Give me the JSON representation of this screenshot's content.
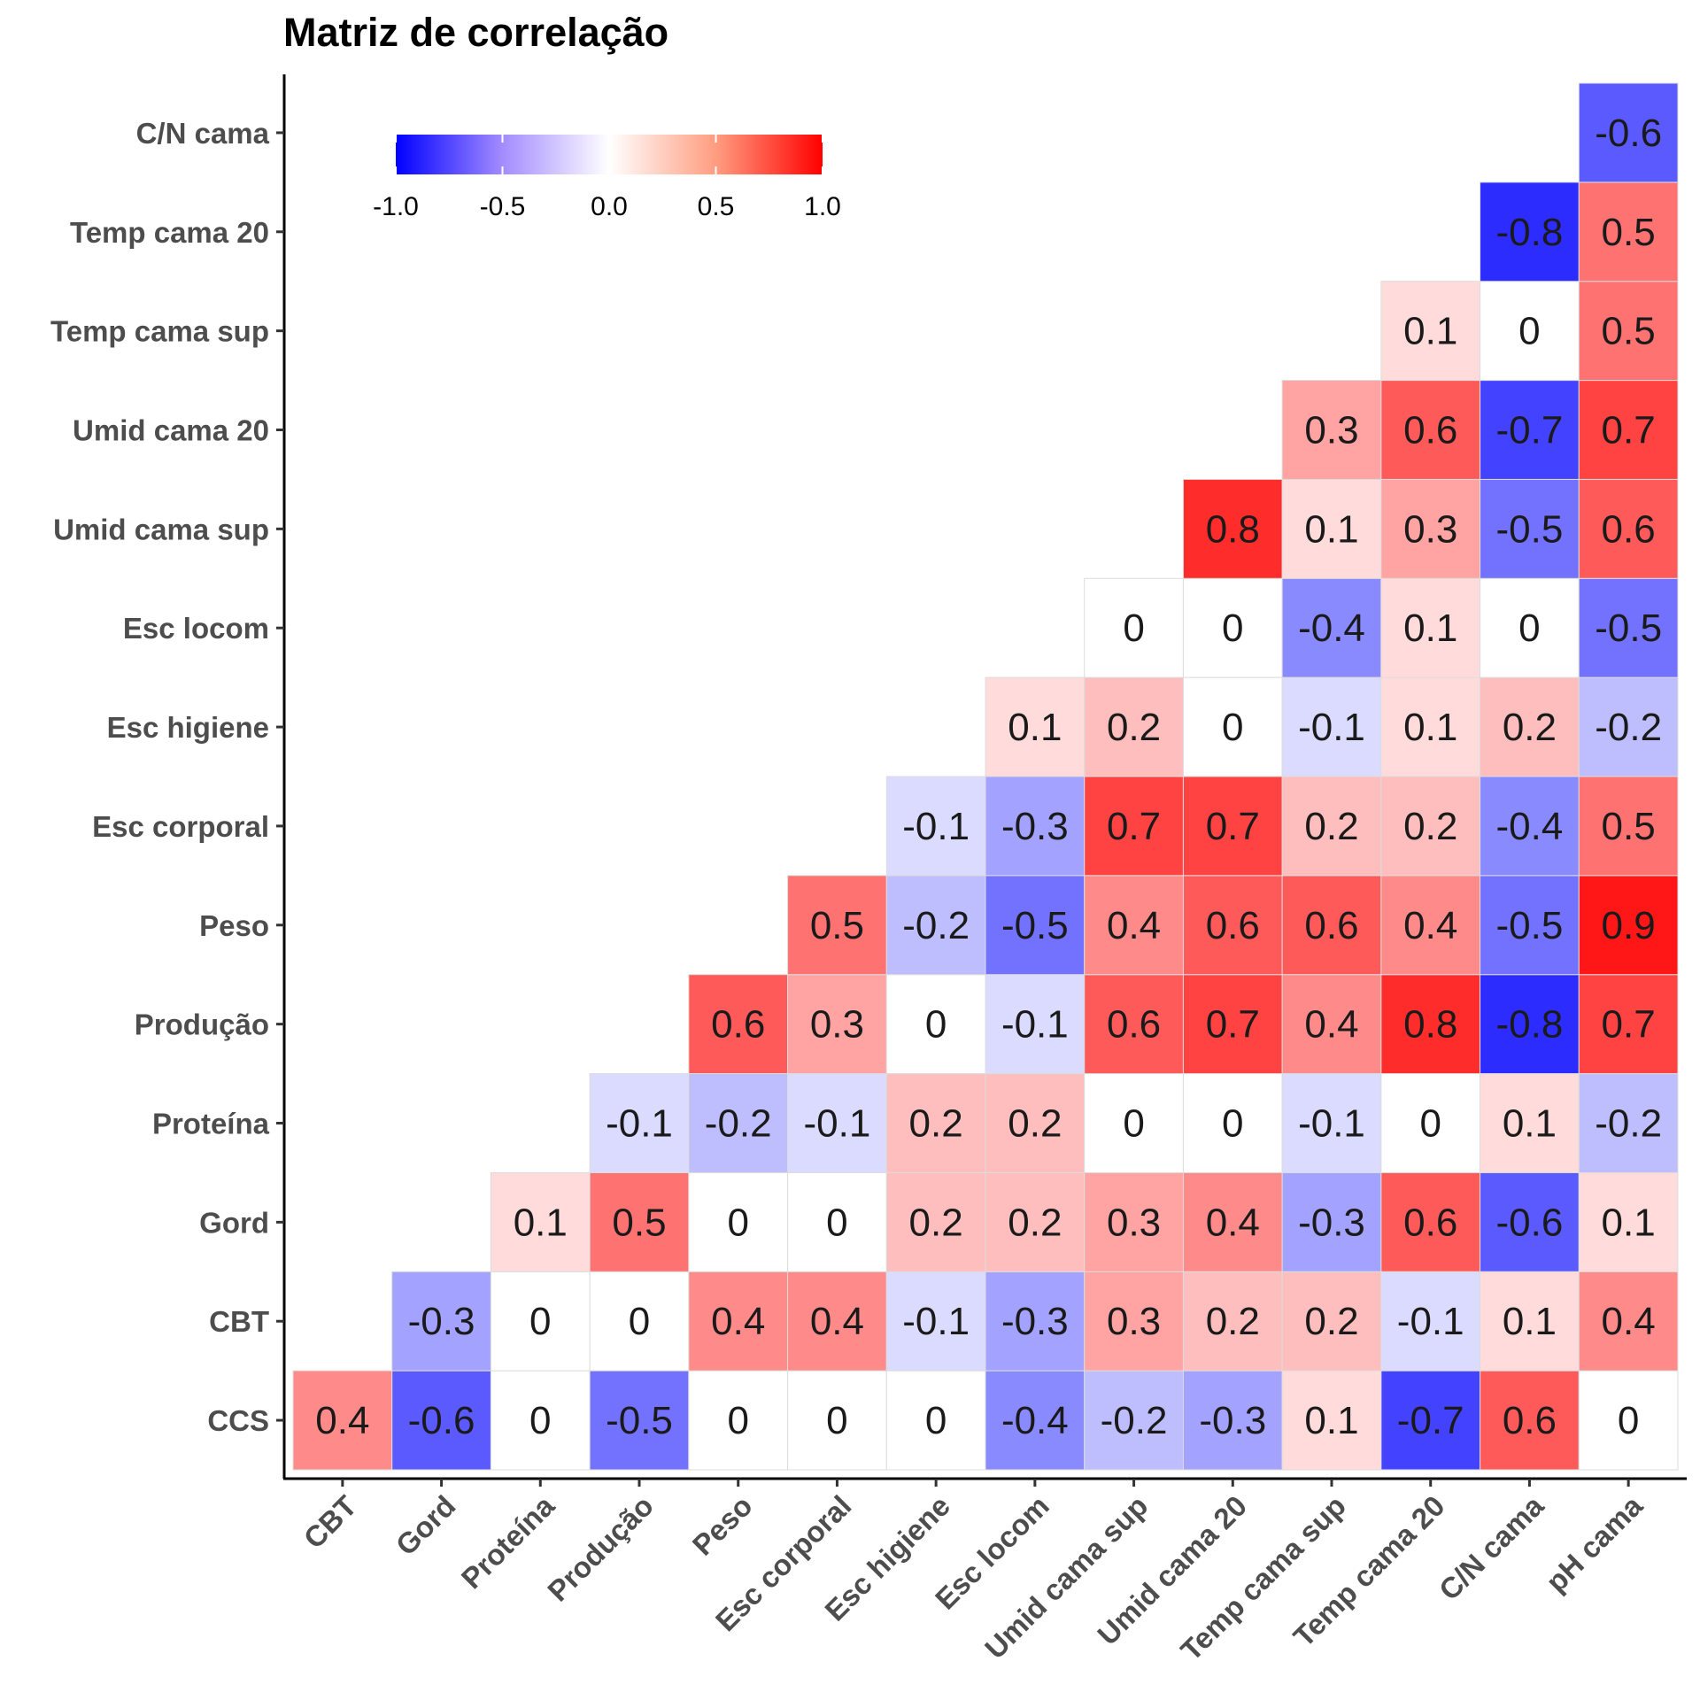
{
  "chart_data": {
    "type": "heatmap",
    "title": "Matriz de correlação",
    "x_categories": [
      "CBT",
      "Gord",
      "Proteína",
      "Produção",
      "Peso",
      "Esc corporal",
      "Esc higiene",
      "Esc locom",
      "Umid cama sup",
      "Umid cama 20",
      "Temp cama sup",
      "Temp cama 20",
      "C/N cama",
      "pH cama"
    ],
    "y_categories": [
      "CCS",
      "CBT",
      "Gord",
      "Proteína",
      "Produção",
      "Peso",
      "Esc corporal",
      "Esc higiene",
      "Esc locom",
      "Umid cama sup",
      "Umid cama 20",
      "Temp cama sup",
      "Temp cama 20",
      "C/N cama"
    ],
    "rows": [
      {
        "y": "CCS",
        "values": [
          "0.4",
          "-0.6",
          "0",
          "-0.5",
          "0",
          "0",
          "0",
          "-0.4",
          "-0.2",
          "-0.3",
          "0.1",
          "-0.7",
          "0.6",
          "0"
        ]
      },
      {
        "y": "CBT",
        "values": [
          null,
          "-0.3",
          "0",
          "0",
          "0.4",
          "0.4",
          "-0.1",
          "-0.3",
          "0.3",
          "0.2",
          "0.2",
          "-0.1",
          "0.1",
          "0.4"
        ]
      },
      {
        "y": "Gord",
        "values": [
          null,
          null,
          "0.1",
          "0.5",
          "0",
          "0",
          "0.2",
          "0.2",
          "0.3",
          "0.4",
          "-0.3",
          "0.6",
          "-0.6",
          "0.1"
        ]
      },
      {
        "y": "Proteína",
        "values": [
          null,
          null,
          null,
          "-0.1",
          "-0.2",
          "-0.1",
          "0.2",
          "0.2",
          "0",
          "0",
          "-0.1",
          "0",
          "0.1",
          "-0.2"
        ]
      },
      {
        "y": "Produção",
        "values": [
          null,
          null,
          null,
          null,
          "0.6",
          "0.3",
          "0",
          "-0.1",
          "0.6",
          "0.7",
          "0.4",
          "0.8",
          "-0.8",
          "0.7"
        ]
      },
      {
        "y": "Peso",
        "values": [
          null,
          null,
          null,
          null,
          null,
          "0.5",
          "-0.2",
          "-0.5",
          "0.4",
          "0.6",
          "0.6",
          "0.4",
          "-0.5",
          "0.9"
        ]
      },
      {
        "y": "Esc corporal",
        "values": [
          null,
          null,
          null,
          null,
          null,
          null,
          "-0.1",
          "-0.3",
          "0.7",
          "0.7",
          "0.2",
          "0.2",
          "-0.4",
          "0.5"
        ]
      },
      {
        "y": "Esc higiene",
        "values": [
          null,
          null,
          null,
          null,
          null,
          null,
          null,
          "0.1",
          "0.2",
          "0",
          "-0.1",
          "0.1",
          "0.2",
          "-0.2"
        ]
      },
      {
        "y": "Esc locom",
        "values": [
          null,
          null,
          null,
          null,
          null,
          null,
          null,
          null,
          "0",
          "0",
          "-0.4",
          "0.1",
          "0",
          "-0.5"
        ]
      },
      {
        "y": "Umid cama sup",
        "values": [
          null,
          null,
          null,
          null,
          null,
          null,
          null,
          null,
          null,
          "0.8",
          "0.1",
          "0.3",
          "-0.5",
          "0.6"
        ]
      },
      {
        "y": "Umid cama 20",
        "values": [
          null,
          null,
          null,
          null,
          null,
          null,
          null,
          null,
          null,
          null,
          "0.3",
          "0.6",
          "-0.7",
          "0.7"
        ]
      },
      {
        "y": "Temp cama sup",
        "values": [
          null,
          null,
          null,
          null,
          null,
          null,
          null,
          null,
          null,
          null,
          null,
          "0.1",
          "0",
          "0.5"
        ]
      },
      {
        "y": "Temp cama 20",
        "values": [
          null,
          null,
          null,
          null,
          null,
          null,
          null,
          null,
          null,
          null,
          null,
          null,
          "-0.8",
          "0.5"
        ]
      },
      {
        "y": "C/N cama",
        "values": [
          null,
          null,
          null,
          null,
          null,
          null,
          null,
          null,
          null,
          null,
          null,
          null,
          null,
          "-0.6"
        ]
      }
    ],
    "color_scale": {
      "low": "#0000ff",
      "mid": "#ffffff",
      "high": "#ff0000",
      "range": [
        -1,
        1
      ]
    },
    "legend": {
      "position": "top-left",
      "ticks": [
        "-1.0",
        "-0.5",
        "0.0",
        "0.5",
        "1.0"
      ]
    },
    "grid": false
  }
}
